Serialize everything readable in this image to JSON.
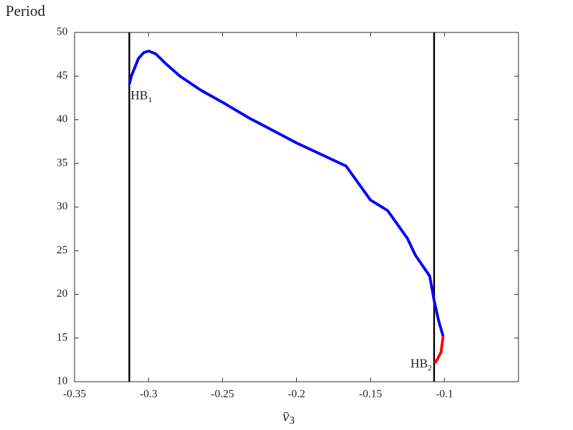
{
  "chart_data": {
    "type": "line",
    "y_label": "Period",
    "x_label": {
      "text": "v̄",
      "sub": "3"
    },
    "xlim": [
      -0.35,
      -0.05
    ],
    "xticks": [
      -0.35,
      -0.3,
      -0.25,
      -0.2,
      -0.15,
      -0.1
    ],
    "ylim": [
      10,
      50
    ],
    "yticks": [
      10,
      15,
      20,
      25,
      30,
      35,
      40,
      45,
      50
    ],
    "vlines": [
      -0.313,
      -0.107
    ],
    "vline_color": "#000000",
    "series": [
      {
        "color": "#0000ff",
        "x": [
          -0.313,
          -0.3116,
          -0.3069,
          -0.3032,
          -0.2999,
          -0.2952,
          -0.2882,
          -0.2788,
          -0.2648,
          -0.25,
          -0.232,
          -0.2,
          -0.1665,
          -0.15,
          -0.1384,
          -0.125,
          -0.1197,
          -0.11,
          -0.107,
          -0.104,
          -0.1009
        ],
        "values": [
          44.07,
          45.0,
          47.0,
          47.7,
          47.87,
          47.55,
          46.4,
          45.0,
          43.4,
          42.0,
          40.2,
          37.35,
          34.7,
          30.8,
          29.6,
          26.4,
          24.5,
          22.1,
          19.3,
          17.0,
          15.2
        ]
      },
      {
        "color": "#ff0000",
        "x": [
          -0.1009,
          -0.1023,
          -0.1047,
          -0.1066
        ],
        "values": [
          15.2,
          13.4,
          12.6,
          12.1
        ]
      }
    ],
    "annotations": [
      {
        "text": "HB",
        "sub": "1"
      },
      {
        "text": "HB",
        "sub": "2"
      }
    ]
  }
}
